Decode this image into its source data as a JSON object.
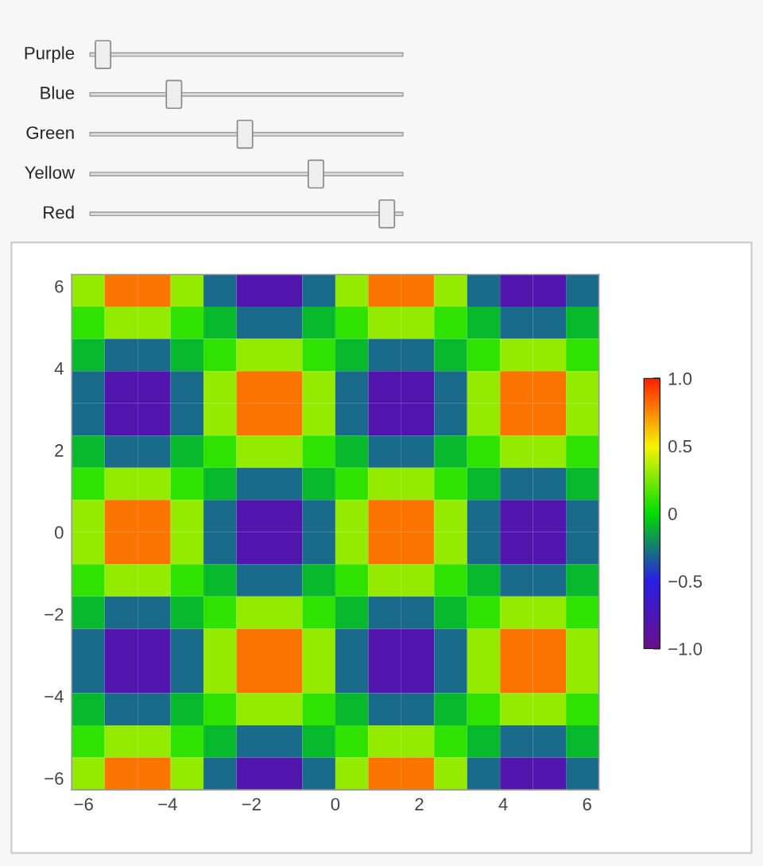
{
  "chart_data": {
    "type": "heatmap",
    "annotations": [
      "Purple",
      "Blue",
      "Green",
      "Yellow",
      "Red"
    ],
    "xlim": [
      -6.283,
      6.283
    ],
    "ylim": [
      -6.283,
      6.283
    ],
    "xticks": [
      {
        "value": -6,
        "label": "−6"
      },
      {
        "value": -4,
        "label": "−4"
      },
      {
        "value": -2,
        "label": "−2"
      },
      0,
      2,
      4,
      6
    ],
    "yticks": [
      {
        "value": -6,
        "label": "−6"
      },
      {
        "value": -4,
        "label": "−4"
      },
      {
        "value": -2,
        "label": "−2"
      },
      0,
      2,
      4,
      6
    ],
    "clim": [
      -1.0,
      1.0
    ],
    "cticks": [
      {
        "value": -1.0,
        "label": "−1.0"
      },
      {
        "value": -0.5,
        "label": "−0.5"
      },
      0,
      0.5,
      {
        "value": 1.0,
        "label": "1.0"
      }
    ],
    "cells": [
      [
        0.3,
        0.8,
        0.8,
        0.3,
        -0.3,
        -0.8,
        -0.8,
        -0.3,
        0.3,
        0.8,
        0.8,
        0.3,
        -0.3,
        -0.8,
        -0.8,
        -0.3
      ],
      [
        0.1,
        0.3,
        0.3,
        0.1,
        -0.1,
        -0.3,
        -0.3,
        -0.1,
        0.1,
        0.3,
        0.3,
        0.1,
        -0.1,
        -0.3,
        -0.3,
        -0.1
      ],
      [
        -0.1,
        -0.3,
        -0.3,
        -0.1,
        0.1,
        0.3,
        0.3,
        0.1,
        -0.1,
        -0.3,
        -0.3,
        -0.1,
        0.1,
        0.3,
        0.3,
        0.1
      ],
      [
        -0.3,
        -0.8,
        -0.8,
        -0.3,
        0.3,
        0.8,
        0.8,
        0.3,
        -0.3,
        -0.8,
        -0.8,
        -0.3,
        0.3,
        0.8,
        0.8,
        0.3
      ],
      [
        -0.3,
        -0.8,
        -0.8,
        -0.3,
        0.3,
        0.8,
        0.8,
        0.3,
        -0.3,
        -0.8,
        -0.8,
        -0.3,
        0.3,
        0.8,
        0.8,
        0.3
      ],
      [
        -0.1,
        -0.3,
        -0.3,
        -0.1,
        0.1,
        0.3,
        0.3,
        0.1,
        -0.1,
        -0.3,
        -0.3,
        -0.1,
        0.1,
        0.3,
        0.3,
        0.1
      ],
      [
        0.1,
        0.3,
        0.3,
        0.1,
        -0.1,
        -0.3,
        -0.3,
        -0.1,
        0.1,
        0.3,
        0.3,
        0.1,
        -0.1,
        -0.3,
        -0.3,
        -0.1
      ],
      [
        0.3,
        0.8,
        0.8,
        0.3,
        -0.3,
        -0.8,
        -0.8,
        -0.3,
        0.3,
        0.8,
        0.8,
        0.3,
        -0.3,
        -0.8,
        -0.8,
        -0.3
      ],
      [
        0.3,
        0.8,
        0.8,
        0.3,
        -0.3,
        -0.8,
        -0.8,
        -0.3,
        0.3,
        0.8,
        0.8,
        0.3,
        -0.3,
        -0.8,
        -0.8,
        -0.3
      ],
      [
        0.1,
        0.3,
        0.3,
        0.1,
        -0.1,
        -0.3,
        -0.3,
        -0.1,
        0.1,
        0.3,
        0.3,
        0.1,
        -0.1,
        -0.3,
        -0.3,
        -0.1
      ],
      [
        -0.1,
        -0.3,
        -0.3,
        -0.1,
        0.1,
        0.3,
        0.3,
        0.1,
        -0.1,
        -0.3,
        -0.3,
        -0.1,
        0.1,
        0.3,
        0.3,
        0.1
      ],
      [
        -0.3,
        -0.8,
        -0.8,
        -0.3,
        0.3,
        0.8,
        0.8,
        0.3,
        -0.3,
        -0.8,
        -0.8,
        -0.3,
        0.3,
        0.8,
        0.8,
        0.3
      ],
      [
        -0.3,
        -0.8,
        -0.8,
        -0.3,
        0.3,
        0.8,
        0.8,
        0.3,
        -0.3,
        -0.8,
        -0.8,
        -0.3,
        0.3,
        0.8,
        0.8,
        0.3
      ],
      [
        -0.1,
        -0.3,
        -0.3,
        -0.1,
        0.1,
        0.3,
        0.3,
        0.1,
        -0.1,
        -0.3,
        -0.3,
        -0.1,
        0.1,
        0.3,
        0.3,
        0.1
      ],
      [
        0.1,
        0.3,
        0.3,
        0.1,
        -0.1,
        -0.3,
        -0.3,
        -0.1,
        0.1,
        0.3,
        0.3,
        0.1,
        -0.1,
        -0.3,
        -0.3,
        -0.1
      ],
      [
        0.3,
        0.8,
        0.8,
        0.3,
        -0.3,
        -0.8,
        -0.8,
        -0.3,
        0.3,
        0.8,
        0.8,
        0.3,
        -0.3,
        -0.8,
        -0.8,
        -0.3
      ]
    ]
  }
}
